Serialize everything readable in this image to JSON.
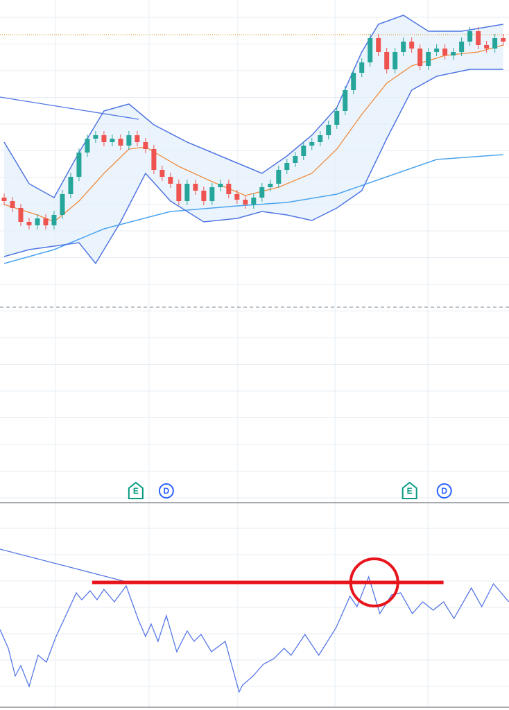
{
  "chart_data": [
    {
      "type": "candlestick",
      "xlim": [
        -0.5,
        60.7
      ],
      "ylim": [
        0,
        725
      ],
      "up_color": "#26a69a",
      "down_color": "#ef5350",
      "open": [
        440,
        435,
        425,
        405,
        400,
        410,
        400,
        415,
        445,
        470,
        505,
        525,
        530,
        520,
        525,
        515,
        530,
        520,
        510,
        480,
        470,
        460,
        435,
        460,
        450,
        435,
        455,
        460,
        445,
        437,
        430,
        440,
        455,
        460,
        480,
        490,
        500,
        515,
        520,
        530,
        545,
        565,
        595,
        620,
        635,
        670,
        650,
        625,
        650,
        665,
        655,
        630,
        650,
        655,
        645,
        650,
        665,
        680,
        660,
        655,
        670
      ],
      "high": [
        446,
        441,
        431,
        411,
        416,
        416,
        421,
        451,
        476,
        511,
        531,
        536,
        536,
        531,
        531,
        536,
        536,
        526,
        516,
        486,
        476,
        466,
        466,
        466,
        456,
        461,
        466,
        466,
        451,
        443,
        446,
        461,
        466,
        486,
        496,
        506,
        521,
        526,
        536,
        551,
        571,
        601,
        626,
        641,
        676,
        676,
        656,
        656,
        671,
        671,
        661,
        656,
        661,
        661,
        656,
        671,
        686,
        686,
        666,
        676,
        676
      ],
      "low": [
        429,
        419,
        399,
        394,
        394,
        394,
        394,
        409,
        439,
        464,
        499,
        519,
        514,
        514,
        509,
        509,
        514,
        504,
        474,
        464,
        454,
        429,
        429,
        444,
        429,
        429,
        449,
        439,
        431,
        424,
        424,
        434,
        449,
        454,
        474,
        484,
        494,
        509,
        514,
        524,
        539,
        559,
        589,
        614,
        629,
        644,
        619,
        619,
        644,
        649,
        624,
        624,
        644,
        639,
        639,
        644,
        659,
        654,
        649,
        649,
        659
      ],
      "close": [
        435,
        425,
        405,
        400,
        410,
        400,
        415,
        445,
        470,
        505,
        525,
        530,
        520,
        525,
        515,
        530,
        520,
        510,
        480,
        470,
        460,
        435,
        460,
        450,
        435,
        455,
        460,
        445,
        437,
        430,
        440,
        455,
        460,
        480,
        490,
        500,
        515,
        520,
        530,
        545,
        565,
        595,
        620,
        635,
        670,
        650,
        625,
        650,
        665,
        655,
        630,
        650,
        655,
        645,
        650,
        665,
        680,
        660,
        655,
        670,
        665
      ],
      "bands": {
        "color": "#4f74e3",
        "fill": "#e3f0fb",
        "upper": {
          "x": [
            0,
            3,
            6,
            9,
            12,
            15,
            18,
            22,
            28,
            31,
            34,
            37,
            40,
            43,
            45,
            48,
            51,
            55,
            60
          ],
          "values": [
            520,
            460,
            440,
            505,
            565,
            575,
            545,
            520,
            490,
            475,
            500,
            530,
            570,
            650,
            690,
            703,
            680,
            680,
            690
          ]
        },
        "lower": {
          "x": [
            0,
            3,
            6,
            9,
            11,
            14,
            17,
            20,
            24,
            28,
            31,
            34,
            37,
            40,
            43,
            46,
            49,
            52,
            56,
            60
          ],
          "values": [
            355,
            365,
            370,
            375,
            345,
            405,
            475,
            435,
            405,
            410,
            420,
            415,
            407,
            425,
            450,
            525,
            595,
            615,
            625,
            625
          ]
        }
      },
      "middle": {
        "color": "#f08a3c",
        "x": [
          0,
          4,
          6,
          9,
          12,
          15,
          17,
          21,
          25,
          29,
          33,
          37,
          40,
          43,
          46,
          49,
          53,
          57,
          60
        ],
        "values": [
          430,
          415,
          405,
          435,
          475,
          510,
          513,
          485,
          463,
          443,
          455,
          475,
          510,
          560,
          605,
          630,
          645,
          650,
          660
        ]
      },
      "moving_average": {
        "color": "#4aa3f0",
        "x": [
          0,
          6,
          12,
          20,
          28,
          34,
          40,
          46,
          52,
          60
        ],
        "values": [
          345,
          365,
          395,
          420,
          428,
          433,
          445,
          470,
          495,
          502
        ]
      },
      "trendline": {
        "color": "#4f74e3",
        "x": [
          -0.5,
          16.17
        ],
        "values": [
          585,
          553
        ]
      },
      "price_line": {
        "value": 675,
        "color": "#d9a53a"
      },
      "dashed_line": {
        "value": 282,
        "color": "#9aa0a8"
      },
      "events": [
        {
          "label": "E",
          "x": 15.83,
          "color": "#089981",
          "shape": "tag"
        },
        {
          "label": "D",
          "x": 19.5,
          "color": "#2962ff",
          "shape": "circle"
        },
        {
          "label": "E",
          "x": 48.75,
          "color": "#089981",
          "shape": "tag"
        },
        {
          "label": "D",
          "x": 52.92,
          "color": "#2962ff",
          "shape": "circle"
        }
      ]
    },
    {
      "type": "line",
      "xlim": [
        -0.5,
        60.7
      ],
      "ylim": [
        0,
        295
      ],
      "color": "#5677e6",
      "x": [
        -0.5,
        0.5,
        1.33,
        2,
        3,
        4.08,
        5.08,
        6.17,
        8.67,
        9.33,
        10.33,
        11.17,
        12,
        13.25,
        14.67,
        16.17,
        17,
        17.67,
        18.5,
        19.5,
        20.75,
        22,
        22.83,
        23.67,
        24.92,
        26.58,
        28.25,
        28.67,
        29.92,
        31.17,
        32.42,
        33.67,
        34.5,
        36.17,
        37.83,
        39.92,
        41.58,
        42.42,
        43.83,
        45.17,
        46.58,
        47.67,
        49.08,
        50.33,
        51.58,
        52.83,
        54.08,
        56.17,
        57.42,
        58.83,
        60.67
      ],
      "values": [
        112,
        85,
        45,
        60,
        30,
        75,
        65,
        100,
        165,
        155,
        168,
        155,
        170,
        152,
        175,
        125,
        102,
        120,
        95,
        132,
        80,
        110,
        95,
        105,
        80,
        95,
        22,
        32,
        45,
        62,
        70,
        85,
        75,
        105,
        75,
        115,
        160,
        145,
        188,
        135,
        162,
        165,
        135,
        152,
        140,
        152,
        128,
        172,
        145,
        178,
        152
      ],
      "trendline": {
        "color": "#5677e6",
        "x": [
          -0.5,
          14.33
        ],
        "values": [
          228,
          182
        ]
      },
      "level_line": {
        "color": "#e8141c",
        "x": [
          10.58,
          52.83
        ],
        "value": 180
      },
      "highlight": {
        "color": "#e8141c",
        "x": 44.5,
        "value": 180
      }
    }
  ]
}
